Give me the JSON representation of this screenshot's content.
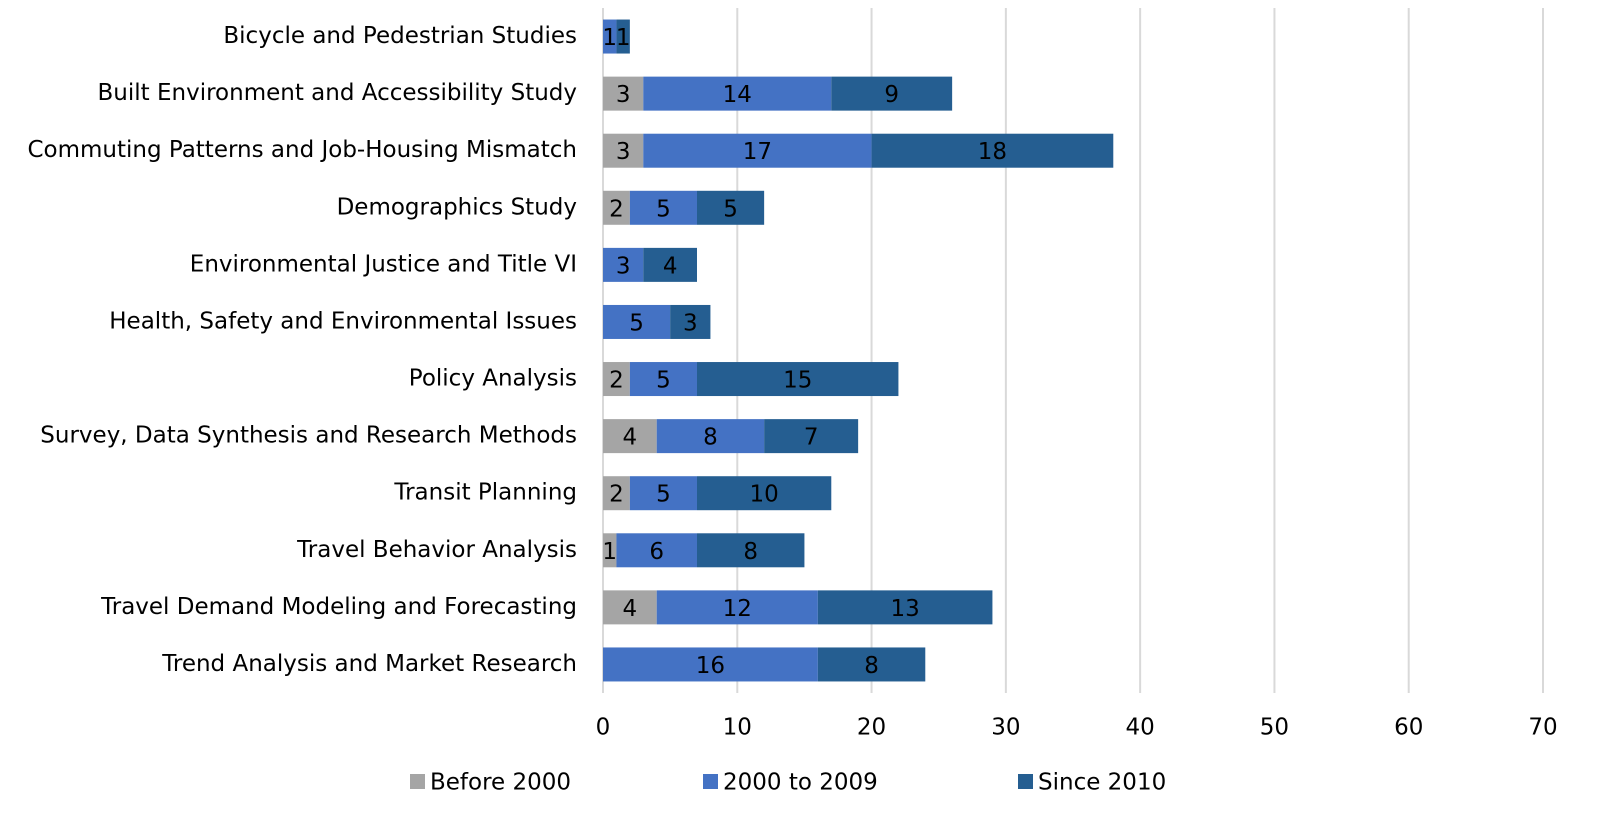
{
  "chart_data": {
    "type": "stacked_bar_horizontal",
    "categories": [
      "Bicycle and Pedestrian Studies",
      "Built Environment and Accessibility Study",
      "Commuting Patterns and Job-Housing Mismatch",
      "Demographics Study",
      "Environmental Justice and Title VI",
      "Health, Safety and Environmental Issues",
      "Policy Analysis",
      "Survey, Data Synthesis and Research Methods",
      "Transit Planning",
      "Travel Behavior Analysis",
      "Travel Demand Modeling and Forecasting",
      "Trend Analysis and Market Research"
    ],
    "series": [
      {
        "name": "Before 2000",
        "color": "#a5a5a5",
        "values": [
          null,
          3,
          3,
          2,
          null,
          null,
          2,
          4,
          2,
          1,
          4,
          null
        ]
      },
      {
        "name": "2000 to 2009",
        "color": "#4472c4",
        "values": [
          1,
          14,
          17,
          5,
          3,
          5,
          5,
          8,
          5,
          6,
          12,
          16
        ]
      },
      {
        "name": "Since 2010",
        "color": "#255e91",
        "values": [
          1,
          9,
          18,
          5,
          4,
          3,
          15,
          7,
          10,
          8,
          13,
          8
        ]
      }
    ],
    "xlim": [
      0,
      70
    ],
    "xticks": [
      0,
      10,
      20,
      30,
      40,
      50,
      60,
      70
    ],
    "grid": true,
    "legend": "bottom"
  }
}
